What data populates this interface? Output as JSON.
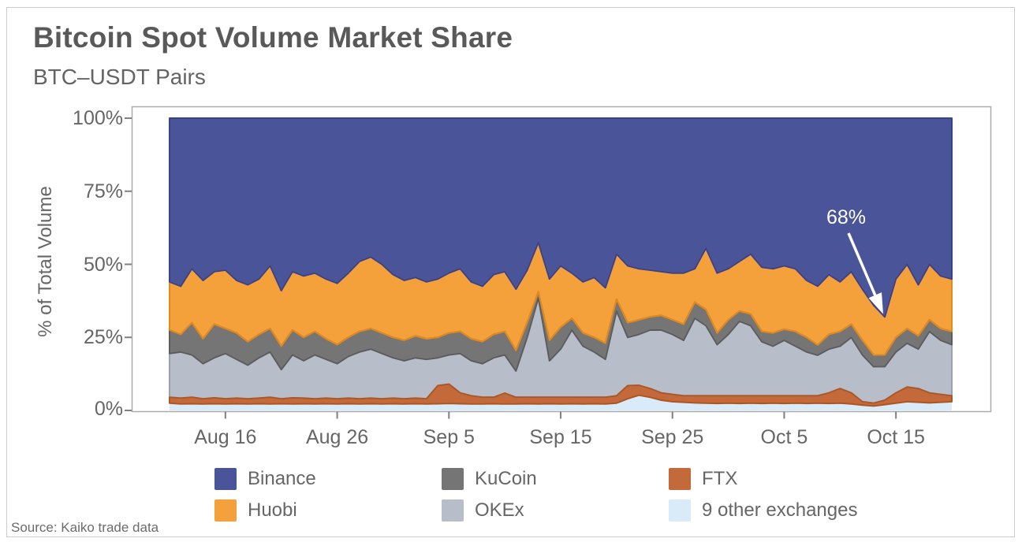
{
  "footer": {
    "source": "Source: Kaiko trade data"
  },
  "legend": {
    "position": "bottom",
    "items": [
      {
        "label": "Binance",
        "color": "#4A5499"
      },
      {
        "label": "Huobi",
        "color": "#F5A13B"
      },
      {
        "label": "KuCoin",
        "color": "#757575"
      },
      {
        "label": "OKEx",
        "color": "#B7BDC9"
      },
      {
        "label": "FTX",
        "color": "#C4693A"
      },
      {
        "label": "9 other exchanges",
        "color": "#D9EAF9"
      }
    ]
  },
  "chart_data": {
    "type": "area",
    "stacked": true,
    "title": "Bitcoin Spot Volume Market Share",
    "subtitle": "BTC–USDT Pairs",
    "ylabel": "% of Total Volume",
    "xlabel": "",
    "unit": "%",
    "ylim": [
      0,
      100
    ],
    "grid": false,
    "n_points": 71,
    "y_tick_labels": [
      "100%",
      "75%",
      "50%",
      "25%",
      "0%"
    ],
    "x_tick_labels": [
      "Aug 16",
      "Aug 26",
      "Sep 5",
      "Sep 15",
      "Sep 25",
      "Oct 5",
      "Oct 15"
    ],
    "x_tick_positions": [
      5,
      15,
      25,
      35,
      45,
      55,
      65
    ],
    "annotation": {
      "text": "68%",
      "series": "Binance",
      "point_index": 64,
      "value": 68
    },
    "series": [
      {
        "name": "9 other exchanges",
        "color": "#D9EAF9",
        "stroke": "#BCD8EE",
        "values": [
          2.5,
          2.2,
          2.3,
          2.2,
          2.3,
          2.2,
          2.3,
          2.2,
          2.3,
          2.2,
          2.3,
          2.2,
          2.3,
          2.2,
          2.3,
          2.2,
          2.3,
          2.2,
          2.3,
          2.2,
          2.3,
          2.2,
          2.3,
          2.2,
          2.3,
          2.4,
          2.3,
          2.2,
          2.2,
          2.3,
          2.2,
          2.2,
          2.3,
          2.2,
          2.3,
          2.2,
          2.3,
          2.2,
          2.3,
          2.2,
          2.5,
          4.0,
          5.2,
          4.5,
          3.5,
          3.0,
          2.8,
          2.6,
          2.5,
          2.4,
          2.5,
          2.4,
          2.5,
          2.4,
          2.5,
          2.4,
          2.5,
          2.4,
          2.5,
          2.4,
          2.5,
          2.2,
          1.8,
          1.5,
          2.0,
          2.5,
          3.0,
          2.8,
          2.6,
          2.8,
          3.0
        ]
      },
      {
        "name": "FTX",
        "color": "#C4693A",
        "stroke": "#AC5626",
        "values": [
          2.0,
          2.0,
          2.2,
          1.8,
          2.0,
          1.8,
          1.9,
          1.8,
          1.9,
          2.3,
          1.7,
          2.1,
          1.9,
          1.8,
          1.9,
          1.8,
          1.9,
          1.8,
          1.9,
          1.8,
          1.9,
          1.8,
          1.9,
          1.8,
          6.2,
          6.6,
          3.7,
          2.8,
          2.3,
          2.2,
          3.7,
          2.3,
          2.2,
          2.3,
          2.2,
          2.3,
          2.2,
          2.3,
          2.2,
          2.3,
          2.5,
          4.5,
          3.4,
          3.0,
          2.5,
          2.5,
          2.2,
          2.4,
          2.5,
          2.6,
          2.5,
          2.6,
          2.5,
          2.6,
          2.5,
          2.6,
          2.5,
          2.6,
          2.5,
          3.6,
          5.0,
          3.8,
          1.2,
          1.0,
          1.5,
          3.5,
          5.0,
          4.7,
          3.4,
          2.7,
          2.0
        ]
      },
      {
        "name": "OKEx",
        "color": "#B7BDC9",
        "stroke": "#99A1AF",
        "values": [
          15.0,
          15.8,
          14.5,
          12.0,
          13.7,
          15.5,
          13.3,
          11.5,
          13.8,
          15.5,
          10.0,
          14.7,
          12.8,
          15.0,
          13.3,
          12.0,
          14.3,
          16.0,
          16.8,
          15.5,
          13.8,
          13.0,
          13.8,
          13.5,
          9.5,
          10.0,
          13.5,
          12.0,
          11.5,
          13.5,
          13.1,
          9.0,
          20.5,
          34.0,
          12.5,
          16.5,
          23.0,
          17.5,
          15.5,
          13.0,
          29.0,
          16.5,
          17.4,
          20.0,
          21.5,
          20.5,
          19.0,
          26.5,
          24.0,
          17.5,
          21.0,
          25.5,
          24.0,
          18.5,
          17.0,
          19.0,
          17.0,
          15.0,
          13.9,
          15.0,
          14.5,
          19.0,
          16.0,
          12.5,
          11.5,
          14.0,
          15.0,
          13.5,
          21.0,
          18.5,
          17.5
        ]
      },
      {
        "name": "KuCoin",
        "color": "#757575",
        "stroke": "#5C5C5C",
        "values": [
          8.0,
          6.0,
          11.0,
          8.5,
          11.5,
          8.5,
          9.0,
          8.0,
          8.0,
          8.0,
          8.0,
          8.5,
          8.0,
          8.0,
          7.0,
          6.5,
          6.5,
          7.0,
          7.0,
          7.0,
          7.0,
          7.0,
          7.5,
          7.0,
          7.0,
          7.5,
          7.5,
          7.5,
          7.5,
          8.0,
          8.0,
          7.0,
          5.0,
          2.0,
          7.0,
          7.5,
          4.0,
          4.5,
          5.0,
          5.5,
          4.0,
          5.0,
          5.0,
          4.5,
          5.0,
          5.0,
          5.5,
          5.5,
          5.5,
          4.0,
          5.0,
          3.5,
          4.0,
          3.5,
          4.5,
          3.8,
          5.0,
          5.0,
          3.5,
          5.0,
          5.0,
          4.5,
          5.0,
          4.0,
          4.0,
          5.0,
          5.0,
          4.5,
          4.0,
          4.0,
          4.5
        ]
      },
      {
        "name": "Huobi",
        "color": "#F5A13B",
        "stroke": "#E08A20",
        "values": [
          16.5,
          16.5,
          18.5,
          20.0,
          18.0,
          20.0,
          18.0,
          19.5,
          19.0,
          21.5,
          19.0,
          20.0,
          21.0,
          20.0,
          20.5,
          21.0,
          22.0,
          24.0,
          24.5,
          23.5,
          21.5,
          20.5,
          20.0,
          19.5,
          20.0,
          20.5,
          21.5,
          19.5,
          19.0,
          20.5,
          20.5,
          21.0,
          18.0,
          17.0,
          21.0,
          21.0,
          15.5,
          17.5,
          20.5,
          19.0,
          15.5,
          19.5,
          17.5,
          16.0,
          15.0,
          16.0,
          17.5,
          11.5,
          21.0,
          20.5,
          17.5,
          17.0,
          20.5,
          22.0,
          22.0,
          21.7,
          21.5,
          19.5,
          20.1,
          20.5,
          17.0,
          18.0,
          17.5,
          17.0,
          13.0,
          20.0,
          22.0,
          17.5,
          19.0,
          18.0,
          18.0
        ]
      },
      {
        "name": "Binance",
        "color": "#4A5499",
        "stroke": "#39418C",
        "values": [
          56.0,
          57.5,
          51.5,
          55.5,
          52.5,
          52.0,
          55.5,
          57.0,
          55.0,
          50.5,
          59.0,
          52.5,
          54.0,
          53.0,
          55.0,
          56.5,
          53.0,
          49.0,
          47.5,
          50.0,
          53.5,
          55.5,
          54.5,
          56.0,
          55.0,
          53.0,
          51.5,
          56.0,
          57.5,
          53.5,
          52.5,
          58.5,
          52.0,
          42.5,
          55.0,
          50.5,
          53.0,
          56.0,
          54.5,
          58.0,
          46.5,
          50.5,
          51.5,
          52.0,
          52.5,
          53.0,
          53.0,
          51.5,
          44.5,
          53.0,
          51.5,
          49.0,
          46.5,
          51.0,
          51.5,
          50.5,
          51.5,
          55.5,
          57.5,
          53.5,
          56.0,
          52.5,
          58.5,
          64.0,
          68.0,
          55.0,
          50.0,
          57.0,
          50.0,
          54.0,
          55.0
        ]
      }
    ]
  }
}
